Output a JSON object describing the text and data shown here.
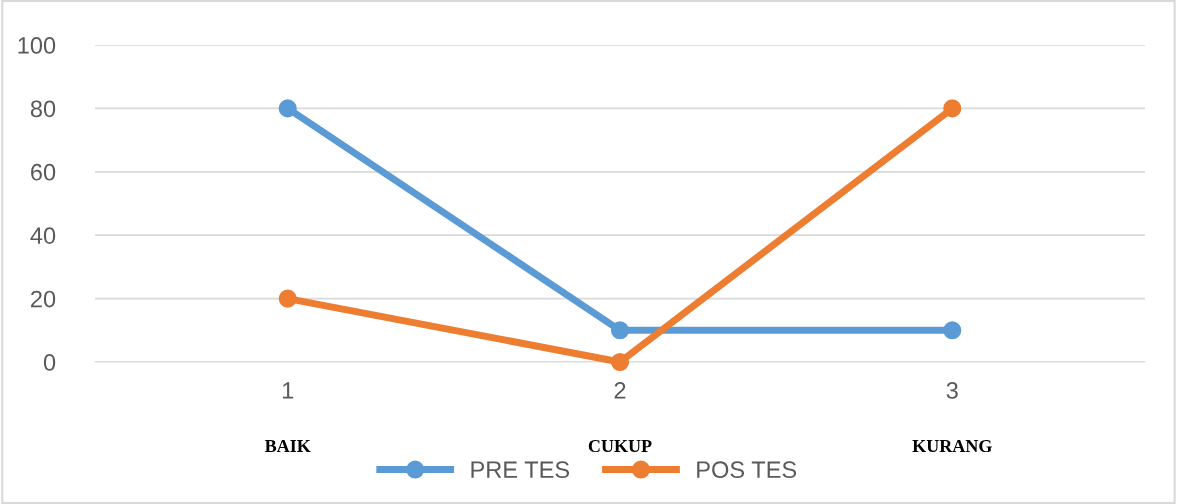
{
  "chart_data": {
    "type": "line",
    "categories": [
      "1",
      "2",
      "3"
    ],
    "series": [
      {
        "name": "PRE TES",
        "color": "#5b9bd5",
        "values": [
          80,
          10,
          10
        ]
      },
      {
        "name": "POS TES",
        "color": "#ed7d31",
        "values": [
          20,
          0,
          80
        ]
      }
    ],
    "ylim": [
      0,
      100
    ],
    "yticks": [
      0,
      20,
      40,
      60,
      80,
      100
    ],
    "grid": "y",
    "legend": "bottom",
    "marker": "circle",
    "line_style": "solid",
    "annotations": [
      "BAIK",
      "CUKUP",
      "KURANG"
    ]
  }
}
